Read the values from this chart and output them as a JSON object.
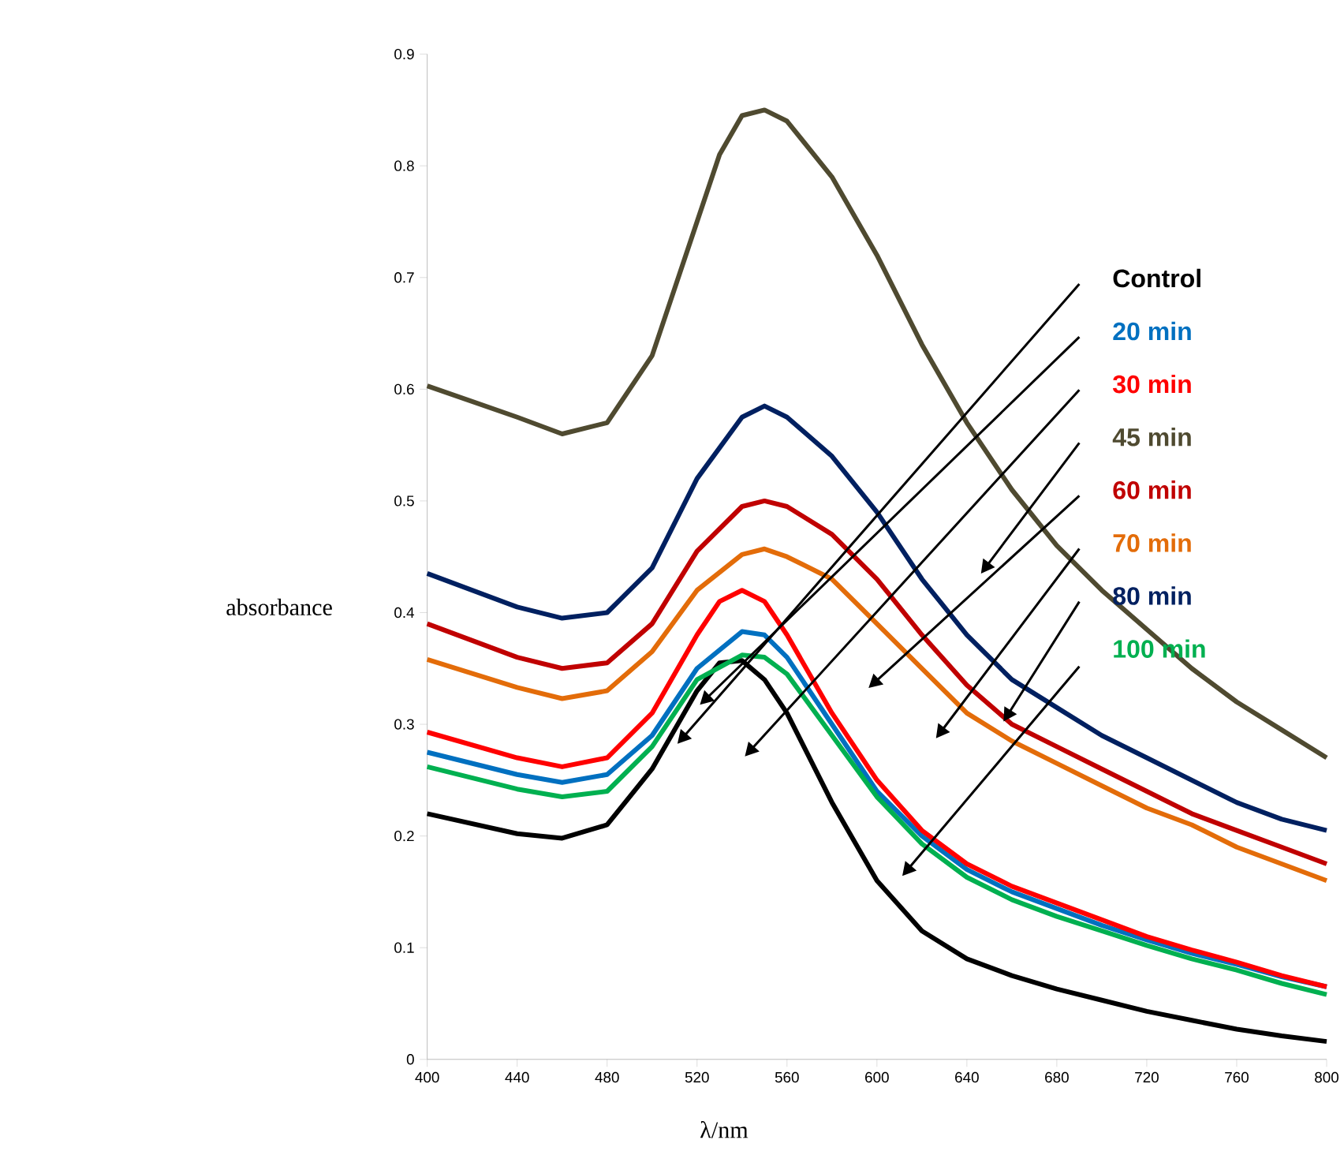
{
  "chart_data": {
    "type": "line",
    "xlabel": "λ/nm",
    "ylabel": "absorbance",
    "xlim": [
      400,
      800
    ],
    "ylim": [
      0,
      0.9
    ],
    "xticks": [
      400,
      440,
      480,
      520,
      560,
      600,
      640,
      680,
      720,
      760,
      800
    ],
    "yticks": [
      0,
      0.1,
      0.2,
      0.3,
      0.4,
      0.5,
      0.6,
      0.7,
      0.8,
      0.9
    ],
    "legend": "right",
    "marker": "none",
    "line_style": "solid",
    "grid": false,
    "series": [
      {
        "name": "Control",
        "color": "#000000",
        "x": [
          400,
          440,
          460,
          480,
          500,
          520,
          530,
          540,
          550,
          560,
          580,
          600,
          620,
          640,
          660,
          680,
          700,
          720,
          740,
          760,
          780,
          800
        ],
        "values": [
          0.22,
          0.202,
          0.198,
          0.21,
          0.26,
          0.33,
          0.355,
          0.357,
          0.34,
          0.31,
          0.23,
          0.16,
          0.115,
          0.09,
          0.075,
          0.063,
          0.053,
          0.043,
          0.035,
          0.027,
          0.021,
          0.016
        ]
      },
      {
        "name": "20 min",
        "color": "#0070c0",
        "x": [
          400,
          440,
          460,
          480,
          500,
          520,
          540,
          550,
          560,
          580,
          600,
          620,
          640,
          660,
          680,
          700,
          720,
          740,
          760,
          780,
          800
        ],
        "values": [
          0.275,
          0.255,
          0.248,
          0.255,
          0.29,
          0.35,
          0.383,
          0.38,
          0.36,
          0.3,
          0.24,
          0.2,
          0.17,
          0.15,
          0.135,
          0.12,
          0.107,
          0.095,
          0.085,
          0.074,
          0.065
        ]
      },
      {
        "name": "30 min",
        "color": "#ff0000",
        "x": [
          400,
          440,
          460,
          480,
          500,
          520,
          530,
          540,
          550,
          560,
          580,
          600,
          620,
          640,
          660,
          680,
          700,
          720,
          740,
          760,
          780,
          800
        ],
        "values": [
          0.293,
          0.27,
          0.262,
          0.27,
          0.31,
          0.38,
          0.41,
          0.42,
          0.41,
          0.38,
          0.31,
          0.25,
          0.205,
          0.175,
          0.155,
          0.14,
          0.125,
          0.11,
          0.098,
          0.087,
          0.075,
          0.065
        ]
      },
      {
        "name": "45 min",
        "color": "#4f4a30",
        "x": [
          400,
          440,
          460,
          480,
          500,
          520,
          530,
          540,
          550,
          560,
          580,
          600,
          620,
          640,
          660,
          680,
          700,
          720,
          740,
          760,
          780,
          800
        ],
        "values": [
          0.603,
          0.575,
          0.56,
          0.57,
          0.63,
          0.75,
          0.81,
          0.845,
          0.85,
          0.84,
          0.79,
          0.72,
          0.64,
          0.57,
          0.51,
          0.46,
          0.42,
          0.385,
          0.35,
          0.32,
          0.295,
          0.27
        ]
      },
      {
        "name": "60 min",
        "color": "#c00000",
        "x": [
          400,
          440,
          460,
          480,
          500,
          520,
          540,
          550,
          560,
          580,
          600,
          620,
          640,
          660,
          680,
          700,
          720,
          740,
          760,
          780,
          800
        ],
        "values": [
          0.39,
          0.36,
          0.35,
          0.355,
          0.39,
          0.455,
          0.495,
          0.5,
          0.495,
          0.47,
          0.43,
          0.38,
          0.335,
          0.3,
          0.28,
          0.26,
          0.24,
          0.22,
          0.205,
          0.19,
          0.175
        ]
      },
      {
        "name": "70 min",
        "color": "#e36c09",
        "x": [
          400,
          440,
          460,
          480,
          500,
          520,
          540,
          550,
          560,
          580,
          600,
          620,
          640,
          660,
          680,
          700,
          720,
          740,
          760,
          780,
          800
        ],
        "values": [
          0.358,
          0.333,
          0.323,
          0.33,
          0.365,
          0.42,
          0.452,
          0.457,
          0.45,
          0.43,
          0.39,
          0.35,
          0.31,
          0.285,
          0.265,
          0.245,
          0.225,
          0.21,
          0.19,
          0.175,
          0.16
        ]
      },
      {
        "name": "80 min",
        "color": "#002060",
        "x": [
          400,
          440,
          460,
          480,
          500,
          520,
          540,
          550,
          560,
          580,
          600,
          620,
          640,
          660,
          680,
          700,
          720,
          740,
          760,
          780,
          800
        ],
        "values": [
          0.435,
          0.405,
          0.395,
          0.4,
          0.44,
          0.52,
          0.575,
          0.585,
          0.575,
          0.54,
          0.49,
          0.43,
          0.38,
          0.34,
          0.315,
          0.29,
          0.27,
          0.25,
          0.23,
          0.215,
          0.205
        ]
      },
      {
        "name": "100 min",
        "color": "#00b050",
        "x": [
          400,
          440,
          460,
          480,
          500,
          520,
          540,
          550,
          560,
          580,
          600,
          620,
          640,
          660,
          680,
          700,
          720,
          740,
          760,
          780,
          800
        ],
        "values": [
          0.262,
          0.242,
          0.235,
          0.24,
          0.28,
          0.34,
          0.362,
          0.36,
          0.345,
          0.29,
          0.235,
          0.193,
          0.163,
          0.143,
          0.128,
          0.115,
          0.102,
          0.09,
          0.08,
          0.068,
          0.058
        ]
      }
    ]
  }
}
